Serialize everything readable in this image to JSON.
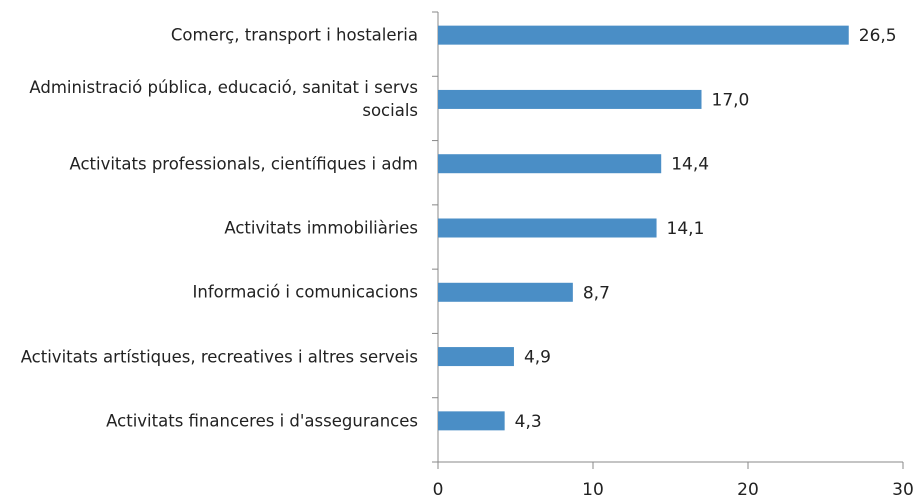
{
  "chart_data": {
    "type": "bar",
    "orientation": "horizontal",
    "categories": [
      "Comerç, transport i hostaleria",
      "Administració pública, educació, sanitat i servs socials",
      "Activitats professionals, científiques i adm",
      "Activitats immobiliàries",
      "Informació i comunicacions",
      "Activitats artístiques, recreatives i altres serveis",
      "Activitats financeres i d'assegurances"
    ],
    "values": [
      26.5,
      17.0,
      14.4,
      14.1,
      8.7,
      4.9,
      4.3
    ],
    "value_labels": [
      "26,5",
      "17,0",
      "14,4",
      "14,1",
      "8,7",
      "4,9",
      "4,3"
    ],
    "color": "#4a8ec6",
    "xlim": [
      0,
      30
    ],
    "xticks": [
      0,
      10,
      20,
      30
    ],
    "grid": false
  }
}
